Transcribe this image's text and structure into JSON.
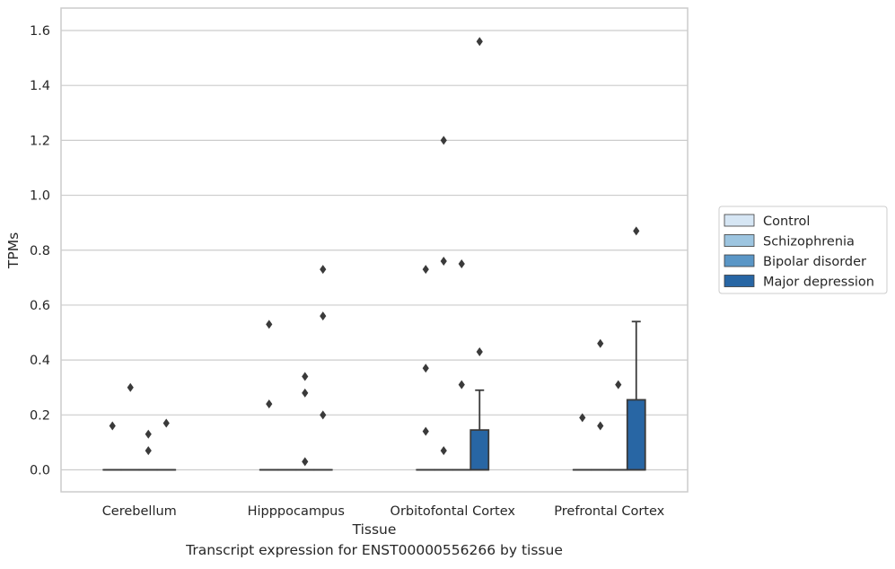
{
  "caption": "Transcript expression for ENST00000556266 by tissue",
  "colors": {
    "Control": "#d6e6f4",
    "Schizophrenia": "#9dc5e0",
    "Bipolar disorder": "#5a96c6",
    "Major depression": "#2866a4",
    "points": "#3a3a3a",
    "grid": "#cccccc",
    "frame": "#cccccc"
  },
  "chart_data": {
    "type": "box",
    "xlabel": "Tissue",
    "ylabel": "TPMs",
    "ylim": [
      -0.075,
      1.64
    ],
    "yticks": [
      0.0,
      0.2,
      0.4,
      0.6,
      0.8,
      1.0,
      1.2,
      1.4,
      1.6
    ],
    "ytick_labels": [
      "0.0",
      "0.2",
      "0.4",
      "0.6",
      "0.8",
      "1.0",
      "1.2",
      "1.4",
      "1.6"
    ],
    "categories": [
      "Cerebellum",
      "Hipppocampus",
      "Orbitofontal Cortex",
      "Prefrontal Cortex"
    ],
    "legend": [
      "Control",
      "Schizophrenia",
      "Bipolar disorder",
      "Major depression"
    ],
    "legend_position": "outside right",
    "grid": "horizontal",
    "boxes": [
      {
        "category": "Cerebellum",
        "series": "Control",
        "q1": 0,
        "median": 0,
        "q3": 0,
        "whislo": 0,
        "whishi": 0,
        "fliers": [
          0.16
        ]
      },
      {
        "category": "Cerebellum",
        "series": "Schizophrenia",
        "q1": 0,
        "median": 0,
        "q3": 0,
        "whislo": 0,
        "whishi": 0,
        "fliers": [
          0.3
        ]
      },
      {
        "category": "Cerebellum",
        "series": "Bipolar disorder",
        "q1": 0,
        "median": 0,
        "q3": 0,
        "whislo": 0,
        "whishi": 0,
        "fliers": [
          0.13,
          0.07
        ]
      },
      {
        "category": "Cerebellum",
        "series": "Major depression",
        "q1": 0,
        "median": 0,
        "q3": 0,
        "whislo": 0,
        "whishi": 0,
        "fliers": [
          0.17
        ]
      },
      {
        "category": "Hipppocampus",
        "series": "Control",
        "q1": 0,
        "median": 0,
        "q3": 0,
        "whislo": 0,
        "whishi": 0,
        "fliers": [
          0.53,
          0.24
        ]
      },
      {
        "category": "Hipppocampus",
        "series": "Schizophrenia",
        "q1": 0,
        "median": 0,
        "q3": 0,
        "whislo": 0,
        "whishi": 0,
        "fliers": []
      },
      {
        "category": "Hipppocampus",
        "series": "Bipolar disorder",
        "q1": 0,
        "median": 0,
        "q3": 0,
        "whislo": 0,
        "whishi": 0,
        "fliers": [
          0.34,
          0.28,
          0.03
        ]
      },
      {
        "category": "Hipppocampus",
        "series": "Major depression",
        "q1": 0,
        "median": 0,
        "q3": 0,
        "whislo": 0,
        "whishi": 0,
        "fliers": [
          0.73,
          0.56,
          0.2
        ]
      },
      {
        "category": "Orbitofontal Cortex",
        "series": "Control",
        "q1": 0,
        "median": 0,
        "q3": 0,
        "whislo": 0,
        "whishi": 0,
        "fliers": [
          0.73,
          0.37,
          0.14
        ]
      },
      {
        "category": "Orbitofontal Cortex",
        "series": "Schizophrenia",
        "q1": 0,
        "median": 0,
        "q3": 0,
        "whislo": 0,
        "whishi": 0,
        "fliers": [
          1.2,
          0.76,
          0.07
        ]
      },
      {
        "category": "Orbitofontal Cortex",
        "series": "Bipolar disorder",
        "q1": 0,
        "median": 0,
        "q3": 0,
        "whislo": 0,
        "whishi": 0,
        "fliers": [
          0.75,
          0.31
        ]
      },
      {
        "category": "Orbitofontal Cortex",
        "series": "Major depression",
        "q1": 0,
        "median": 0,
        "q3": 0.145,
        "whislo": 0,
        "whishi": 0.29,
        "fliers": [
          1.56,
          0.43
        ]
      },
      {
        "category": "Prefrontal Cortex",
        "series": "Control",
        "q1": 0,
        "median": 0,
        "q3": 0,
        "whislo": 0,
        "whishi": 0,
        "fliers": [
          0.19
        ]
      },
      {
        "category": "Prefrontal Cortex",
        "series": "Schizophrenia",
        "q1": 0,
        "median": 0,
        "q3": 0,
        "whislo": 0,
        "whishi": 0,
        "fliers": [
          0.46,
          0.16
        ]
      },
      {
        "category": "Prefrontal Cortex",
        "series": "Bipolar disorder",
        "q1": 0,
        "median": 0,
        "q3": 0,
        "whislo": 0,
        "whishi": 0,
        "fliers": [
          0.31
        ]
      },
      {
        "category": "Prefrontal Cortex",
        "series": "Major depression",
        "q1": 0,
        "median": 0,
        "q3": 0.255,
        "whislo": 0,
        "whishi": 0.54,
        "fliers": [
          0.87
        ]
      }
    ]
  }
}
